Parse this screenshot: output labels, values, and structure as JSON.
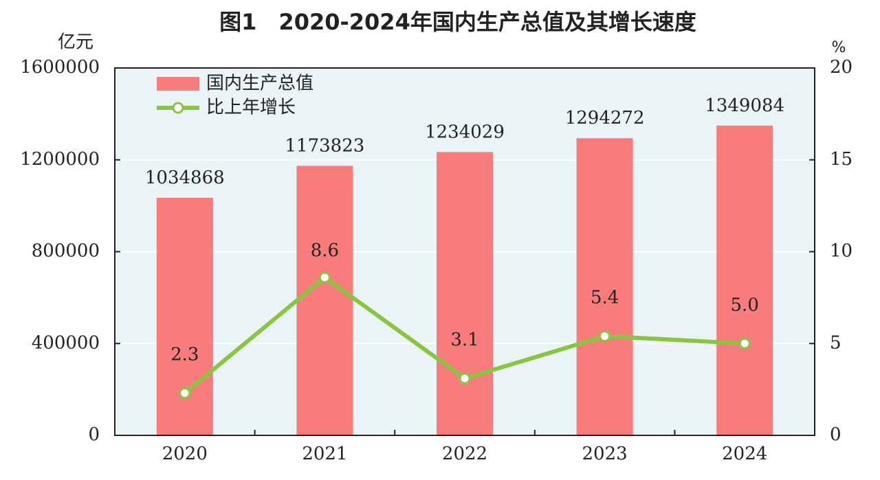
{
  "chart_data": {
    "type": "bar-line",
    "title": "图1　2020-2024年国内生产总值及其增长速度",
    "y_label": "亿元",
    "y2_label": "%",
    "categories": [
      "2020",
      "2021",
      "2022",
      "2023",
      "2024"
    ],
    "series": [
      {
        "name": "国内生产总值",
        "type": "bar",
        "color": "#f87c7c",
        "values": [
          1034868,
          1173823,
          1234029,
          1294272,
          1349084
        ]
      },
      {
        "name": "比上年增长",
        "type": "line",
        "axis": "y2",
        "color": "#88c540",
        "values": [
          2.3,
          8.6,
          3.1,
          5.4,
          5.0
        ],
        "value_labels": [
          "2.3",
          "8.6",
          "3.1",
          "5.4",
          "5.0"
        ]
      }
    ],
    "ylim": [
      0,
      1600000
    ],
    "yticks": [
      0,
      400000,
      800000,
      1200000,
      1600000
    ],
    "y2lim": [
      0,
      20
    ],
    "y2ticks": [
      0,
      5,
      10,
      15,
      20
    ],
    "grid": true,
    "legend": "upper left"
  }
}
